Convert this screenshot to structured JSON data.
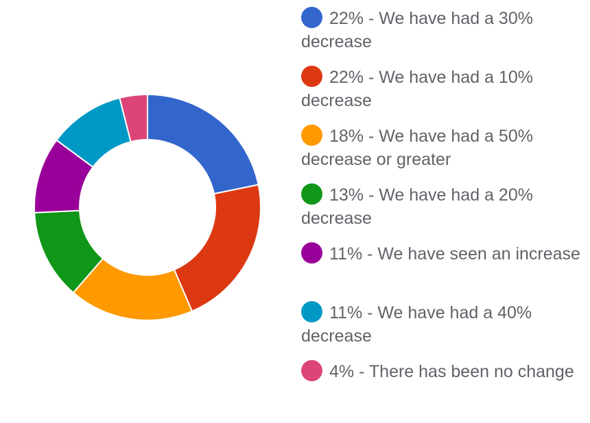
{
  "chart_data": {
    "type": "pie",
    "donut": true,
    "start_angle_deg": 0,
    "direction": "clockwise",
    "legend_position": "right",
    "slices": [
      {
        "label": "22% - We have had a 30% decrease",
        "value": 22,
        "color": "#3366cc"
      },
      {
        "label": "22% - We have had a 10% decrease",
        "value": 22,
        "color": "#dc3912"
      },
      {
        "label": "18% - We have had a 50% decrease or greater",
        "value": 18,
        "color": "#ff9900"
      },
      {
        "label": "13% - We have had a 20% decrease",
        "value": 13,
        "color": "#109618"
      },
      {
        "label": "11% - We have seen an increase",
        "value": 11,
        "color": "#990099"
      },
      {
        "label": "11% - We have had a 40% decrease",
        "value": 11,
        "color": "#0099c6"
      },
      {
        "label": "4% - There has been no change",
        "value": 4,
        "color": "#dd4477"
      }
    ]
  }
}
